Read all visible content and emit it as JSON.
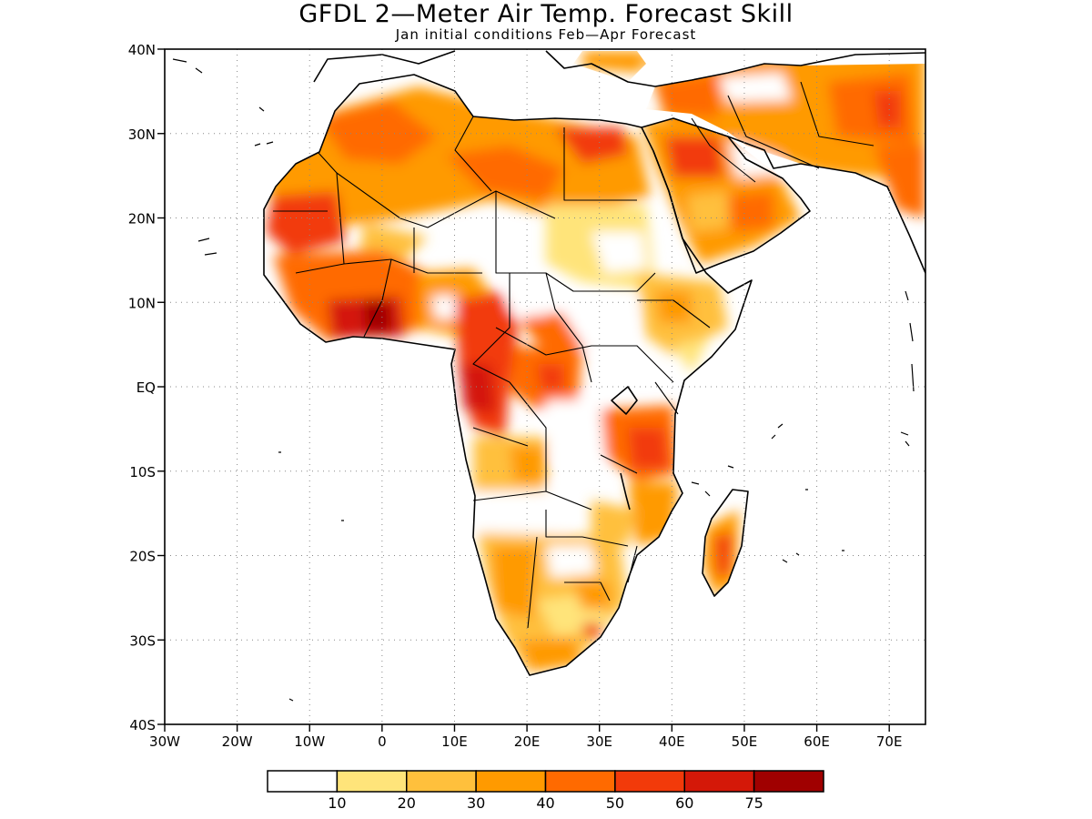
{
  "title": "GFDL 2—Meter Air Temp. Forecast Skill",
  "subtitle": "Jan initial conditions  Feb—Apr Forecast",
  "map": {
    "extent": {
      "lon_min": -30,
      "lon_max": 75,
      "lat_min": -40,
      "lat_max": 40
    },
    "lat_labels": [
      {
        "lat": 40,
        "text": "40N"
      },
      {
        "lat": 30,
        "text": "30N"
      },
      {
        "lat": 20,
        "text": "20N"
      },
      {
        "lat": 10,
        "text": "10N"
      },
      {
        "lat": 0,
        "text": "EQ"
      },
      {
        "lat": -10,
        "text": "10S"
      },
      {
        "lat": -20,
        "text": "20S"
      },
      {
        "lat": -30,
        "text": "30S"
      },
      {
        "lat": -40,
        "text": "40S"
      }
    ],
    "lon_labels": [
      {
        "lon": -30,
        "text": "30W"
      },
      {
        "lon": -20,
        "text": "20W"
      },
      {
        "lon": -10,
        "text": "10W"
      },
      {
        "lon": 0,
        "text": "0"
      },
      {
        "lon": 10,
        "text": "10E"
      },
      {
        "lon": 20,
        "text": "20E"
      },
      {
        "lon": 30,
        "text": "30E"
      },
      {
        "lon": 40,
        "text": "40E"
      },
      {
        "lon": 50,
        "text": "50E"
      },
      {
        "lon": 60,
        "text": "60E"
      },
      {
        "lon": 70,
        "text": "70E"
      }
    ],
    "grid": "dotted"
  },
  "legend": {
    "levels": [
      "10",
      "20",
      "30",
      "40",
      "50",
      "60",
      "75"
    ],
    "colors": [
      "#ffffff",
      "#ffe47a",
      "#ffc03c",
      "#ff9a00",
      "#ff6a00",
      "#f23a0a",
      "#d41808",
      "#a00000"
    ]
  }
}
